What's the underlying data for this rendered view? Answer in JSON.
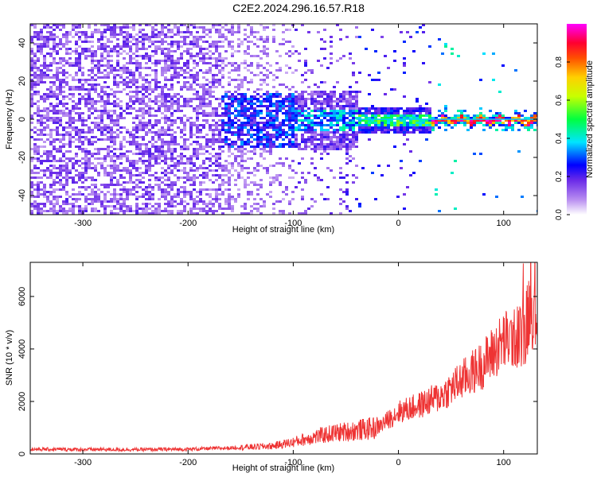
{
  "title": "C2E2.2024.296.16.57.R18",
  "chart_data": [
    {
      "type": "heatmap",
      "xlabel": "Height of straight line (km)",
      "ylabel": "Frequency (Hz)",
      "xlim": [
        -350,
        132
      ],
      "ylim": [
        -50,
        50
      ],
      "xticks": [
        -300,
        -200,
        -100,
        0,
        100
      ],
      "yticks": [
        -40,
        -20,
        0,
        20,
        40
      ],
      "grid": false,
      "colorbar": {
        "label": "Normalized spectral amplitude",
        "range": [
          0.0,
          1.0
        ],
        "ticks": [
          0.0,
          0.2,
          0.4,
          0.6,
          0.8
        ],
        "colormap": [
          "#ffffff",
          "#8a2be2",
          "#0000ff",
          "#00ffff",
          "#00ff00",
          "#ffff00",
          "#ff8000",
          "#ff0000",
          "#ff00ff"
        ]
      },
      "description_regions": [
        {
          "x": [
            -350,
            -170
          ],
          "freq": [
            -50,
            50
          ],
          "amplitude": [
            0.05,
            0.25
          ]
        },
        {
          "x": [
            -170,
            -40
          ],
          "freq": [
            -15,
            15
          ],
          "amplitude": [
            0.2,
            0.45
          ]
        },
        {
          "x": [
            -40,
            30
          ],
          "freq": [
            -6,
            6
          ],
          "amplitude": [
            0.3,
            0.6
          ]
        },
        {
          "x": [
            30,
            132
          ],
          "freq": [
            -2,
            2
          ],
          "amplitude": [
            0.6,
            1.0
          ]
        }
      ]
    },
    {
      "type": "line",
      "xlabel": "Height of straight line (km)",
      "ylabel": "SNR (10 * v/v)",
      "xlim": [
        -350,
        132
      ],
      "ylim": [
        0,
        7300
      ],
      "xticks": [
        -300,
        -200,
        -100,
        0,
        100
      ],
      "yticks": [
        0,
        2000,
        4000,
        6000
      ],
      "color": "#ee3333",
      "grid": false,
      "series": [
        {
          "x": [
            -350,
            -300,
            -250,
            -200,
            -160,
            -120,
            -100,
            -80,
            -60,
            -40,
            -20,
            -10,
            0,
            20,
            40,
            60,
            80,
            100,
            110,
            120,
            125,
            130,
            132
          ],
          "y": [
            180,
            170,
            165,
            180,
            230,
            300,
            450,
            650,
            800,
            900,
            1000,
            1300,
            1600,
            1850,
            2200,
            2800,
            3400,
            4300,
            4400,
            4600,
            5800,
            5200,
            5500
          ]
        }
      ]
    }
  ]
}
